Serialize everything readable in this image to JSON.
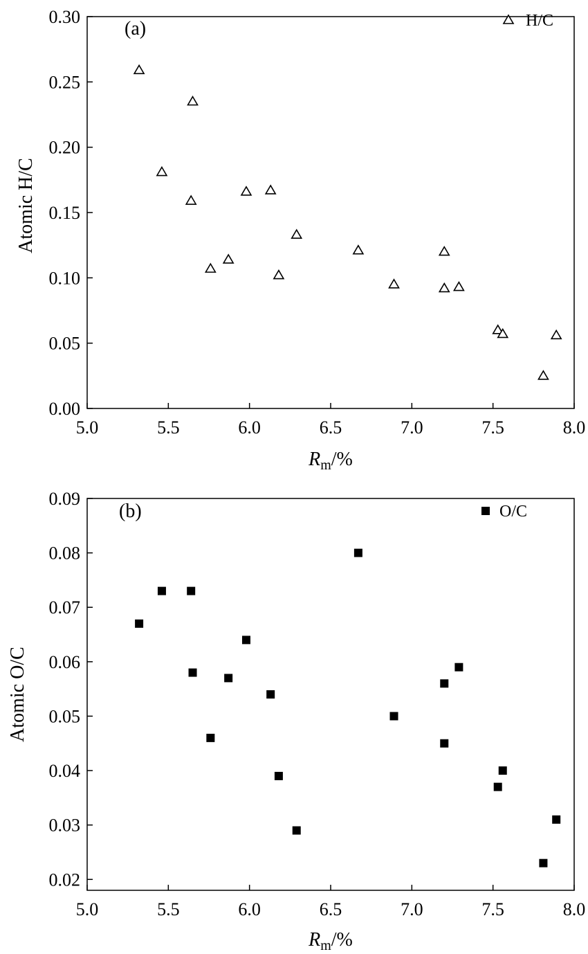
{
  "chart_data": [
    {
      "type": "scatter",
      "panel_label": "(a)",
      "xlabel": {
        "main": "R",
        "sub": "m",
        "rest": "/%"
      },
      "ylabel": "Atomic H/C",
      "xlim": [
        5.0,
        8.0
      ],
      "ylim": [
        0.0,
        0.3
      ],
      "xticks": [
        "5.0",
        "5.5",
        "6.0",
        "6.5",
        "7.0",
        "7.5",
        "8.0"
      ],
      "yticks": [
        "0.00",
        "0.05",
        "0.10",
        "0.15",
        "0.20",
        "0.25",
        "0.30"
      ],
      "grid": false,
      "legend_position": "top-right",
      "series": [
        {
          "name": "H/C",
          "marker": "open-triangle",
          "color": "#000000",
          "points": [
            [
              5.32,
              0.259
            ],
            [
              5.46,
              0.181
            ],
            [
              5.64,
              0.159
            ],
            [
              5.65,
              0.235
            ],
            [
              5.76,
              0.107
            ],
            [
              5.87,
              0.114
            ],
            [
              5.98,
              0.166
            ],
            [
              6.13,
              0.167
            ],
            [
              6.18,
              0.102
            ],
            [
              6.29,
              0.133
            ],
            [
              6.67,
              0.121
            ],
            [
              6.89,
              0.095
            ],
            [
              7.2,
              0.12
            ],
            [
              7.2,
              0.092
            ],
            [
              7.29,
              0.093
            ],
            [
              7.53,
              0.06
            ],
            [
              7.56,
              0.057
            ],
            [
              7.81,
              0.025
            ],
            [
              7.89,
              0.056
            ]
          ]
        }
      ]
    },
    {
      "type": "scatter",
      "panel_label": "(b)",
      "xlabel": {
        "main": "R",
        "sub": "m",
        "rest": "/%"
      },
      "ylabel": "Atomic O/C",
      "xlim": [
        5.0,
        8.0
      ],
      "ylim": [
        0.018,
        0.09
      ],
      "xticks": [
        "5.0",
        "5.5",
        "6.0",
        "6.5",
        "7.0",
        "7.5",
        "8.0"
      ],
      "yticks": [
        "0.02",
        "0.03",
        "0.04",
        "0.05",
        "0.06",
        "0.07",
        "0.08",
        "0.09"
      ],
      "grid": false,
      "legend_position": "top-right",
      "series": [
        {
          "name": "O/C",
          "marker": "filled-square",
          "color": "#000000",
          "points": [
            [
              5.32,
              0.067
            ],
            [
              5.46,
              0.073
            ],
            [
              5.64,
              0.073
            ],
            [
              5.65,
              0.058
            ],
            [
              5.76,
              0.046
            ],
            [
              5.87,
              0.057
            ],
            [
              5.98,
              0.064
            ],
            [
              6.13,
              0.054
            ],
            [
              6.18,
              0.039
            ],
            [
              6.29,
              0.029
            ],
            [
              6.67,
              0.08
            ],
            [
              6.89,
              0.05
            ],
            [
              7.2,
              0.056
            ],
            [
              7.2,
              0.045
            ],
            [
              7.29,
              0.059
            ],
            [
              7.53,
              0.037
            ],
            [
              7.56,
              0.04
            ],
            [
              7.81,
              0.023
            ],
            [
              7.89,
              0.031
            ]
          ]
        }
      ]
    }
  ]
}
